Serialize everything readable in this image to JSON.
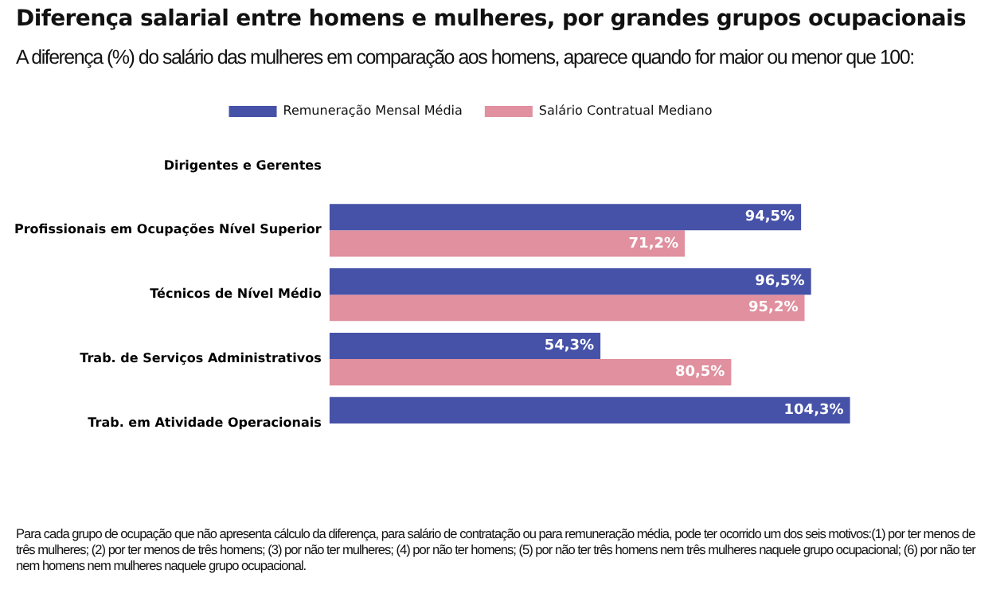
{
  "chart_data": {
    "type": "bar",
    "orientation": "horizontal",
    "title": "Diferença salarial entre homens e mulheres, por grandes grupos ocupacionais",
    "subtitle": "A diferença (%) do salário das mulheres em comparação aos homens, aparece quando for maior ou menor que 100:",
    "categories": [
      "Dirigentes e Gerentes",
      "Profissionais em Ocupações Nível Superior",
      "Técnicos de Nível Médio",
      "Trab. de Serviços Administrativos",
      "Trab. em Atividade Operacionais"
    ],
    "series": [
      {
        "name": "Remuneração Mensal Média",
        "color": "#4652a8",
        "values": [
          null,
          94.5,
          96.5,
          54.3,
          104.3
        ],
        "value_labels": [
          null,
          "94,5%",
          "96,5%",
          "54,3%",
          "104,3%"
        ]
      },
      {
        "name": "Salário Contratual Mediano",
        "color": "#e0909e",
        "values": [
          null,
          71.2,
          95.2,
          80.5,
          null
        ],
        "value_labels": [
          null,
          "71,2%",
          "95,2%",
          "80,5%",
          null
        ]
      }
    ],
    "legend": "top",
    "grid": false,
    "tick_labels": "y",
    "annotations": [
      "Para cada grupo de ocupação que não apresenta cálculo da diferença, para salário de contratação ou para remuneração média, pode ter ocorrido um dos seis motivos:(1) por ter menos de três mulheres; (2) por ter menos de três homens; (3) por não ter mulheres; (4) por não ter homens; (5) por não ter três homens nem três mulheres naquele grupo ocupacional; (6) por não ter nem homens nem mulheres naquele grupo ocupacional."
    ]
  }
}
